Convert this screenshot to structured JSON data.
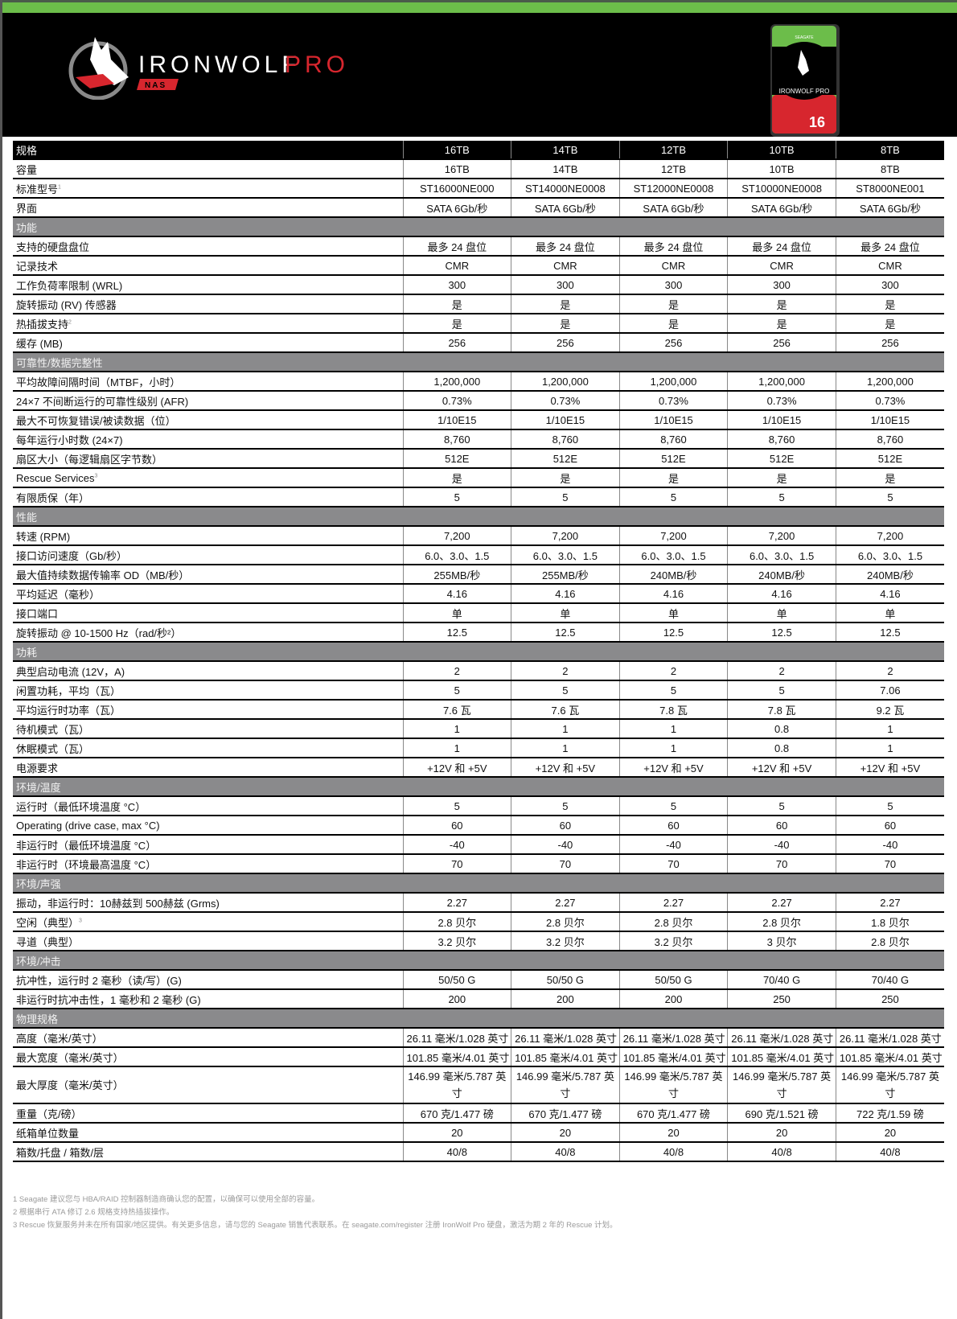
{
  "brand": {
    "logo_text": "IRONWOLF PRO",
    "logo_sub": "NAS",
    "drive_label": "IRONWOLF PRO",
    "drive_capacity": "16TB",
    "drive_brand": "SEAGATE",
    "accent_green": "#6cbd4a",
    "accent_red": "#d7262e"
  },
  "table": {
    "header": {
      "label": "规格",
      "values": [
        "16TB",
        "14TB",
        "12TB",
        "10TB",
        "8TB"
      ]
    },
    "rows": [
      {
        "label": "容量",
        "values": [
          "16TB",
          "14TB",
          "12TB",
          "10TB",
          "8TB"
        ]
      },
      {
        "label": "标准型号",
        "sup": "1",
        "values": [
          "ST16000NE000",
          "ST14000NE0008",
          "ST12000NE0008",
          "ST10000NE0008",
          "ST8000NE001"
        ]
      },
      {
        "label": "界面",
        "values": [
          "SATA 6Gb/秒",
          "SATA 6Gb/秒",
          "SATA 6Gb/秒",
          "SATA 6Gb/秒",
          "SATA 6Gb/秒"
        ]
      },
      {
        "section": "功能"
      },
      {
        "label": "支持的硬盘盘位",
        "values": [
          "最多 24 盘位",
          "最多 24 盘位",
          "最多 24 盘位",
          "最多 24 盘位",
          "最多 24 盘位"
        ]
      },
      {
        "label": "记录技术",
        "values": [
          "CMR",
          "CMR",
          "CMR",
          "CMR",
          "CMR"
        ]
      },
      {
        "label": "工作负荷率限制 (WRL)",
        "values": [
          "300",
          "300",
          "300",
          "300",
          "300"
        ]
      },
      {
        "label": "旋转振动 (RV) 传感器",
        "values": [
          "是",
          "是",
          "是",
          "是",
          "是"
        ]
      },
      {
        "label": "热插拔支持",
        "sup": "2",
        "values": [
          "是",
          "是",
          "是",
          "是",
          "是"
        ]
      },
      {
        "label": "缓存 (MB)",
        "values": [
          "256",
          "256",
          "256",
          "256",
          "256"
        ]
      },
      {
        "section": "可靠性/数据完整性"
      },
      {
        "label": "平均故障间隔时间（MTBF，小时）",
        "values": [
          "1,200,000",
          "1,200,000",
          "1,200,000",
          "1,200,000",
          "1,200,000"
        ]
      },
      {
        "label": "24×7 不间断运行的可靠性级别 (AFR)",
        "values": [
          "0.73%",
          "0.73%",
          "0.73%",
          "0.73%",
          "0.73%"
        ]
      },
      {
        "label": "最大不可恢复错误/被读数据（位）",
        "values": [
          "1/10E15",
          "1/10E15",
          "1/10E15",
          "1/10E15",
          "1/10E15"
        ]
      },
      {
        "label": "每年运行小时数 (24×7)",
        "values": [
          "8,760",
          "8,760",
          "8,760",
          "8,760",
          "8,760"
        ]
      },
      {
        "label": "扇区大小（每逻辑扇区字节数）",
        "values": [
          "512E",
          "512E",
          "512E",
          "512E",
          "512E"
        ]
      },
      {
        "label": "Rescue Services",
        "sup": "3",
        "values": [
          "是",
          "是",
          "是",
          "是",
          "是"
        ]
      },
      {
        "label": "有限质保（年）",
        "values": [
          "5",
          "5",
          "5",
          "5",
          "5"
        ]
      },
      {
        "section": "性能"
      },
      {
        "label": "转速 (RPM)",
        "values": [
          "7,200",
          "7,200",
          "7,200",
          "7,200",
          "7,200"
        ]
      },
      {
        "label": "接口访问速度（Gb/秒）",
        "values": [
          "6.0、3.0、1.5",
          "6.0、3.0、1.5",
          "6.0、3.0、1.5",
          "6.0、3.0、1.5",
          "6.0、3.0、1.5"
        ]
      },
      {
        "label": "最大值持续数据传输率 OD（MB/秒）",
        "values": [
          "255MB/秒",
          "255MB/秒",
          "240MB/秒",
          "240MB/秒",
          "240MB/秒"
        ]
      },
      {
        "label": "平均延迟（毫秒）",
        "values": [
          "4.16",
          "4.16",
          "4.16",
          "4.16",
          "4.16"
        ]
      },
      {
        "label": "接口端口",
        "values": [
          "单",
          "单",
          "单",
          "单",
          "单"
        ]
      },
      {
        "label": "旋转振动 @ 10-1500 Hz（rad/秒²）",
        "values": [
          "12.5",
          "12.5",
          "12.5",
          "12.5",
          "12.5"
        ]
      },
      {
        "section": "功耗"
      },
      {
        "label": "典型启动电流 (12V，A)",
        "values": [
          "2",
          "2",
          "2",
          "2",
          "2"
        ]
      },
      {
        "label": "闲置功耗，平均（瓦）",
        "values": [
          "5",
          "5",
          "5",
          "5",
          "7.06"
        ]
      },
      {
        "label": "平均运行时功率（瓦）",
        "values": [
          "7.6 瓦",
          "7.6 瓦",
          "7.8 瓦",
          "7.8 瓦",
          "9.2 瓦"
        ]
      },
      {
        "label": "待机模式（瓦）",
        "values": [
          "1",
          "1",
          "1",
          "0.8",
          "1"
        ]
      },
      {
        "label": "休眠模式（瓦）",
        "values": [
          "1",
          "1",
          "1",
          "0.8",
          "1"
        ]
      },
      {
        "label": "电源要求",
        "values": [
          "+12V 和 +5V",
          "+12V 和 +5V",
          "+12V 和 +5V",
          "+12V 和 +5V",
          "+12V 和 +5V"
        ]
      },
      {
        "section": "环境/温度"
      },
      {
        "label": "运行时（最低环境温度 °C）",
        "values": [
          "5",
          "5",
          "5",
          "5",
          "5"
        ]
      },
      {
        "label": "Operating (drive case, max °C)",
        "values": [
          "60",
          "60",
          "60",
          "60",
          "60"
        ]
      },
      {
        "label": "非运行时（最低环境温度 °C）",
        "values": [
          "-40",
          "-40",
          "-40",
          "-40",
          "-40"
        ]
      },
      {
        "label": "非运行时（环境最高温度 °C）",
        "values": [
          "70",
          "70",
          "70",
          "70",
          "70"
        ]
      },
      {
        "section": "环境/声强"
      },
      {
        "label": "振动，非运行时：10赫兹到 500赫兹 (Grms)",
        "values": [
          "2.27",
          "2.27",
          "2.27",
          "2.27",
          "2.27"
        ]
      },
      {
        "label": "空闲（典型）",
        "sup": "3",
        "values": [
          "2.8 贝尔",
          "2.8 贝尔",
          "2.8 贝尔",
          "2.8 贝尔",
          "1.8 贝尔"
        ]
      },
      {
        "label": "寻道（典型）",
        "values": [
          "3.2 贝尔",
          "3.2 贝尔",
          "3.2 贝尔",
          "3 贝尔",
          "2.8 贝尔"
        ]
      },
      {
        "section": "环境/冲击"
      },
      {
        "label": "抗冲性，运行时 2 毫秒（读/写）(G)",
        "values": [
          "50/50 G",
          "50/50 G",
          "50/50 G",
          "70/40 G",
          "70/40 G"
        ]
      },
      {
        "label": "非运行时抗冲击性，1 毫秒和 2 毫秒 (G)",
        "values": [
          "200",
          "200",
          "200",
          "250",
          "250"
        ]
      },
      {
        "section": "物理规格"
      },
      {
        "label": "高度（毫米/英寸）",
        "values": [
          "26.11 毫米/1.028 英寸",
          "26.11 毫米/1.028 英寸",
          "26.11 毫米/1.028 英寸",
          "26.11 毫米/1.028 英寸",
          "26.11 毫米/1.028 英寸"
        ]
      },
      {
        "label": "最大宽度（毫米/英寸）",
        "values": [
          "101.85 毫米/4.01 英寸",
          "101.85 毫米/4.01 英寸",
          "101.85 毫米/4.01 英寸",
          "101.85 毫米/4.01 英寸",
          "101.85 毫米/4.01 英寸"
        ]
      },
      {
        "label": "最大厚度（毫米/英寸）",
        "double": true,
        "values": [
          "146.99 毫米/5.787 英寸",
          "146.99 毫米/5.787 英寸",
          "146.99 毫米/5.787 英寸",
          "146.99 毫米/5.787 英寸",
          "146.99 毫米/5.787 英寸"
        ]
      },
      {
        "label": "重量（克/磅）",
        "values": [
          "670 克/1.477 磅",
          "670 克/1.477 磅",
          "670 克/1.477 磅",
          "690 克/1.521 磅",
          "722 克/1.59 磅"
        ]
      },
      {
        "label": "纸箱单位数量",
        "values": [
          "20",
          "20",
          "20",
          "20",
          "20"
        ]
      },
      {
        "label": "箱数/托盘 / 箱数/层",
        "values": [
          "40/8",
          "40/8",
          "40/8",
          "40/8",
          "40/8"
        ]
      }
    ]
  },
  "footnotes": [
    "1 Seagate 建议您与 HBA/RAID 控制器制造商确认您的配置，以确保可以使用全部的容量。",
    "2 根据串行 ATA 修订 2.6 规格支持热插拔操作。",
    "3 Rescue 恢复服务并未在所有国家/地区提供。有关更多信息，请与您的 Seagate 销售代表联系。在 seagate.com/register 注册 IronWolf Pro 硬盘，激活为期 2 年的 Rescue 计划。"
  ]
}
